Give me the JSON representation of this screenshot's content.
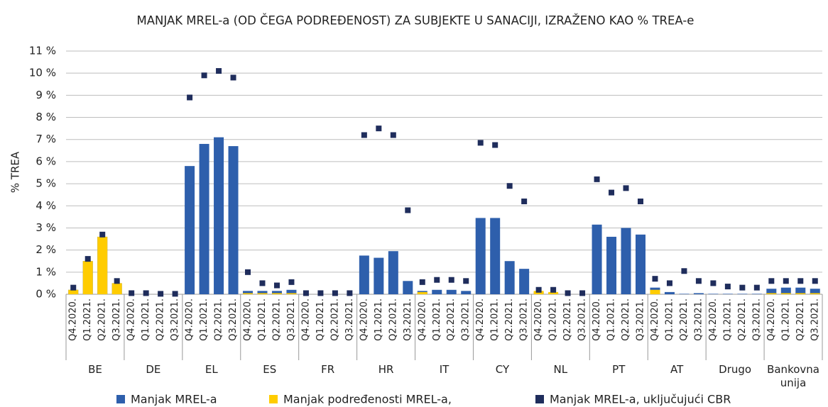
{
  "chart_data": {
    "type": "bar",
    "title": "MANJAK MREL-a (OD ČEGA PODREĐENOST) ZA SUBJEKTE U SANACIJI, IZRAŽENO KAO % TREA-e",
    "ylabel": "% TREA",
    "groups": [
      "BE",
      "DE",
      "EL",
      "ES",
      "FR",
      "HR",
      "IT",
      "CY",
      "NL",
      "PT",
      "AT",
      "Drugo",
      "Bankovna unija"
    ],
    "categories": [
      "Q4.2020.",
      "Q1.2021.",
      "Q2.2021.",
      "Q3.2021.",
      "Q4.2020.",
      "Q1.2021.",
      "Q2.2021.",
      "Q3.2021.",
      "Q4.2020.",
      "Q1.2021.",
      "Q2.2021.",
      "Q3.2021.",
      "Q4.2020.",
      "Q1.2021.",
      "Q2.2021.",
      "Q3.2021.",
      "Q4.2020.",
      "Q1.2021.",
      "Q2.2021.",
      "Q3.2021.",
      "Q4.2020.",
      "Q1.2021.",
      "Q2.2021.",
      "Q3.2021.",
      "Q4.2020.",
      "Q1.2021.",
      "Q2.2021.",
      "Q3.2021.",
      "Q4.2020.",
      "Q1.2021.",
      "Q2.2021.",
      "Q3.2021.",
      "Q4.2020.",
      "Q1.2021.",
      "Q2.2021.",
      "Q3.2021.",
      "Q4.2020.",
      "Q1.2021.",
      "Q2.2021.",
      "Q3.2021.",
      "Q4.2020.",
      "Q1.2021.",
      "Q2.2021.",
      "Q3.2021.",
      "Q4.2020.",
      "Q1.2021.",
      "Q2.2021.",
      "Q3.2021.",
      "Q4.2020.",
      "Q1.2021.",
      "Q2.2021.",
      "Q3.2021."
    ],
    "series": [
      {
        "name": "Manjak MREL-a",
        "color": "#2e5fac",
        "mark": "bar",
        "values": [
          0.2,
          1.5,
          2.6,
          0.5,
          0,
          0,
          0,
          0,
          5.8,
          6.8,
          7.1,
          6.7,
          0.15,
          0.15,
          0.15,
          0.2,
          0,
          0,
          0,
          0,
          1.75,
          1.65,
          1.95,
          0.6,
          0.15,
          0.2,
          0.2,
          0.15,
          3.45,
          3.45,
          1.5,
          1.15,
          0.1,
          0.05,
          0,
          0,
          3.15,
          2.6,
          3.0,
          2.7,
          0.3,
          0.1,
          0.02,
          0.05,
          0.02,
          0.02,
          0.02,
          0.02,
          0.25,
          0.3,
          0.3,
          0.25
        ]
      },
      {
        "name": "Manjak podređenosti MREL-a,",
        "color": "#ffcc00",
        "mark": "bar",
        "values": [
          0.2,
          1.5,
          2.6,
          0.5,
          0,
          0,
          0,
          0,
          0,
          0,
          0,
          0,
          0.05,
          0.05,
          0.05,
          0.05,
          0,
          0,
          0,
          0,
          0,
          0,
          0,
          0,
          0.1,
          0,
          0,
          0,
          0,
          0,
          0,
          0,
          0.15,
          0.1,
          0,
          0,
          0,
          0,
          0,
          0,
          0.2,
          0,
          0,
          0,
          0,
          0,
          0,
          0,
          0.05,
          0.05,
          0.05,
          0.05
        ]
      },
      {
        "name": "Manjak MREL-a, uključujući CBR",
        "color": "#1f2d5c",
        "mark": "square",
        "values": [
          0.3,
          1.6,
          2.7,
          0.6,
          0.05,
          0.05,
          0.02,
          0.02,
          8.9,
          9.9,
          10.1,
          9.8,
          1.0,
          0.5,
          0.4,
          0.55,
          0.05,
          0.05,
          0.05,
          0.05,
          7.2,
          7.5,
          7.2,
          3.8,
          0.55,
          0.65,
          0.65,
          0.6,
          6.85,
          6.75,
          4.9,
          4.2,
          0.2,
          0.2,
          0.05,
          0.05,
          5.2,
          4.6,
          4.8,
          4.2,
          0.7,
          0.5,
          1.05,
          0.6,
          0.5,
          0.35,
          0.3,
          0.3,
          0.6,
          0.6,
          0.6,
          0.6
        ]
      }
    ],
    "ylim": [
      0,
      11
    ],
    "yticks": [
      {
        "value": 0,
        "label": "0 %"
      },
      {
        "value": 1,
        "label": "1 %"
      },
      {
        "value": 2,
        "label": "2 %"
      },
      {
        "value": 3,
        "label": "3 %"
      },
      {
        "value": 4,
        "label": "4 %"
      },
      {
        "value": 5,
        "label": "5 %"
      },
      {
        "value": 6,
        "label": "6 %"
      },
      {
        "value": 7,
        "label": "7 %"
      },
      {
        "value": 8,
        "label": "8 %"
      },
      {
        "value": 9,
        "label": "9 %"
      },
      {
        "value": 10,
        "label": "10 %"
      },
      {
        "value": 11,
        "label": "11 %"
      }
    ],
    "grid": true
  }
}
